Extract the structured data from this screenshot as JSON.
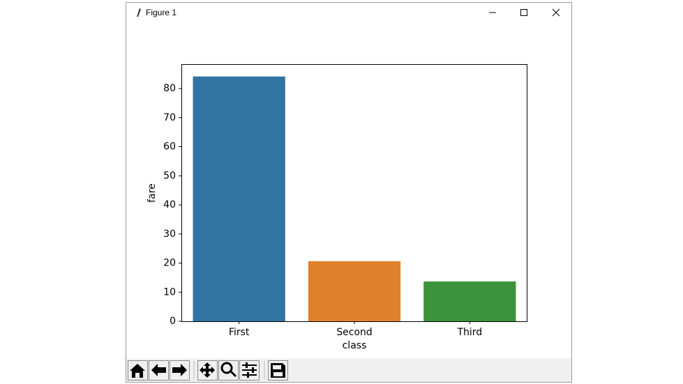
{
  "window": {
    "title": "Figure 1"
  },
  "chart_data": {
    "type": "bar",
    "x_label": "class",
    "y_label": "fare",
    "categories": [
      "First",
      "Second",
      "Third"
    ],
    "values": [
      84.15,
      20.66,
      13.68
    ],
    "colors": [
      "#3274a1",
      "#e1812c",
      "#3a923a"
    ],
    "ylim": [
      0,
      88.4
    ],
    "yticks": [
      0,
      10,
      20,
      30,
      40,
      50,
      60,
      70,
      80
    ],
    "grid": false
  }
}
